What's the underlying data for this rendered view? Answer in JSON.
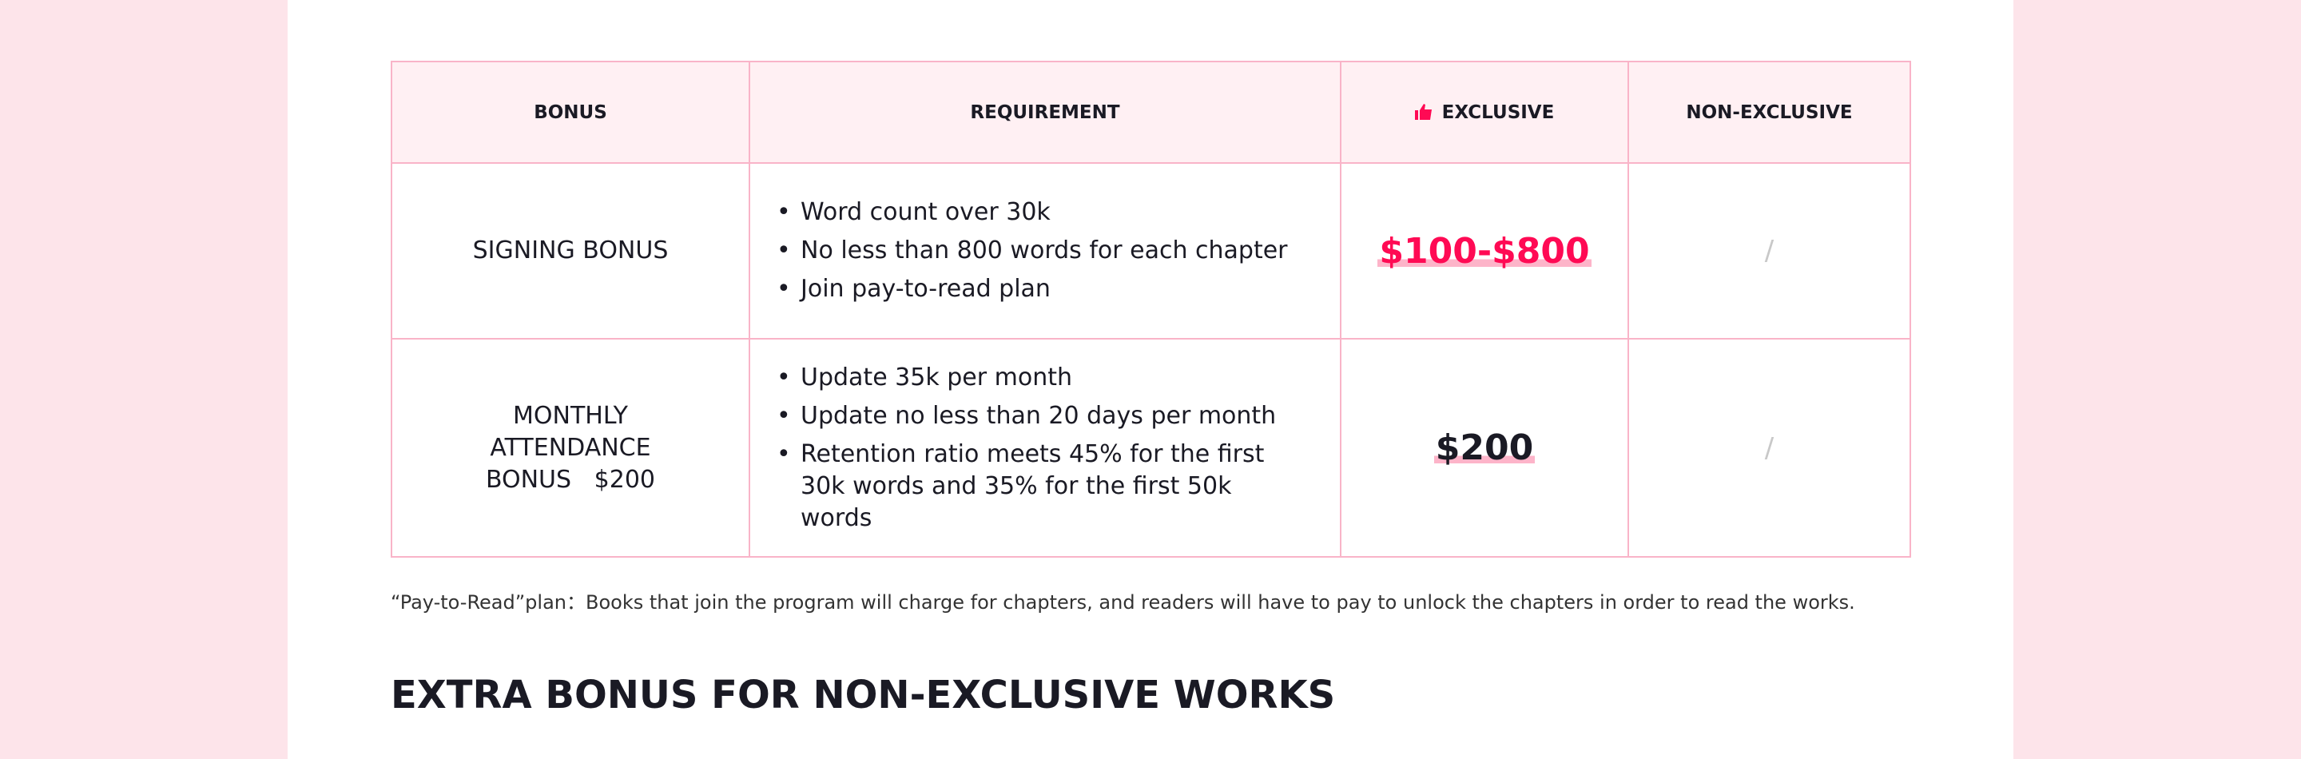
{
  "table": {
    "headers": [
      "BONUS",
      "REQUIREMENT",
      "EXCLUSIVE",
      "NON-EXCLUSIVE"
    ],
    "rows": [
      {
        "bonus": "SIGNING BONUS",
        "requirements": [
          "Word count over 30k",
          "No less than 800 words for each chapter",
          "Join pay-to-read plan"
        ],
        "exclusive": "$100-$800",
        "non_exclusive": "/"
      },
      {
        "bonus": "MONTHLY ATTENDANCE BONUS   $200",
        "requirements": [
          "Update 35k per month",
          "Update no less than 20 days per month",
          "Retention ratio meets 45% for the first 30k words and 35% for the first 50k words"
        ],
        "exclusive": "$200",
        "non_exclusive": "/"
      }
    ]
  },
  "footnote": "“Pay-to-Read”plan：Books that join the program will charge for chapters, and readers will have to pay to unlock the chapters in order to read the works.",
  "section_heading": "EXTRA BONUS FOR NON-EXCLUSIVE WORKS",
  "colors": {
    "accent": "#ff0a54",
    "border": "#f9b4c8",
    "header_bg": "#fff0f3",
    "page_bg": "#fde4ea"
  },
  "icons": {
    "exclusive": "thumbs-up-icon"
  }
}
